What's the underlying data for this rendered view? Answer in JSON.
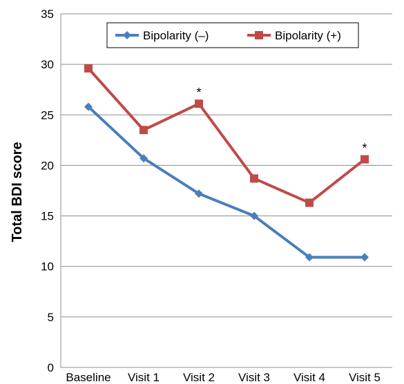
{
  "chart_data": {
    "type": "line",
    "title": "",
    "xlabel": "",
    "ylabel": "Total BDI score",
    "categories": [
      "Baseline",
      "Visit 1",
      "Visit 2",
      "Visit 3",
      "Visit 4",
      "Visit 5"
    ],
    "ylim": [
      0,
      35
    ],
    "yticks": [
      0,
      5,
      10,
      15,
      20,
      25,
      30,
      35
    ],
    "grid": "horizontal",
    "legend_position": "top-right",
    "series": [
      {
        "name": "Bipolarity (–)",
        "values": [
          25.8,
          20.7,
          17.2,
          15.0,
          10.9,
          10.9
        ],
        "color": "#4a7ebb",
        "marker": "diamond"
      },
      {
        "name": "Bipolarity (+)",
        "values": [
          29.6,
          23.5,
          26.1,
          18.7,
          16.3,
          20.6
        ],
        "color": "#be4b48",
        "marker": "square"
      }
    ],
    "annotations": [
      {
        "text": "*",
        "series": 1,
        "category": "Visit 2"
      },
      {
        "text": "*",
        "series": 1,
        "category": "Visit 5"
      }
    ]
  }
}
